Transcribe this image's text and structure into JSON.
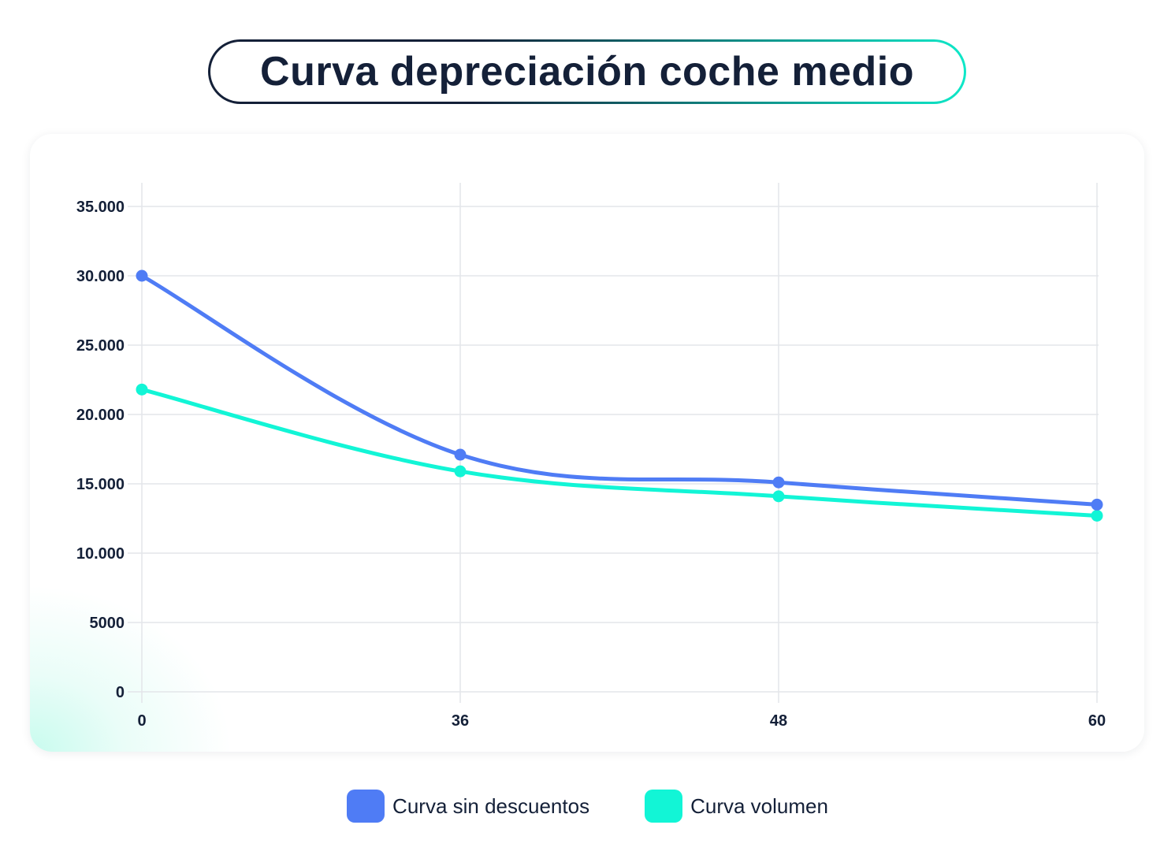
{
  "title": "Curva depreciación coche medio",
  "colors": {
    "series_1": "#4f7cf5",
    "series_2": "#12f5d6",
    "text": "#142038",
    "grid": "#e3e5ea"
  },
  "chart_data": {
    "type": "line",
    "x": [
      0,
      36,
      48,
      60
    ],
    "x_tick_labels": [
      "0",
      "36",
      "48",
      "60"
    ],
    "y_tick_labels": [
      "35.000",
      "30.000",
      "25.000",
      "20.000",
      "15.000",
      "10.000",
      "5000",
      "0"
    ],
    "y_ticks": [
      35000,
      30000,
      25000,
      20000,
      15000,
      10000,
      5000,
      0
    ],
    "ylim": [
      0,
      35000
    ],
    "grid": true,
    "legend_position": "bottom",
    "series": [
      {
        "name": "Curva sin descuentos",
        "color": "#4f7cf5",
        "values": [
          30000,
          17100,
          15100,
          13500
        ]
      },
      {
        "name": "Curva volumen",
        "color": "#12f5d6",
        "values": [
          21800,
          15900,
          14100,
          12700
        ]
      }
    ]
  },
  "legend": {
    "items": [
      {
        "label": "Curva sin descuentos",
        "color": "#4f7cf5"
      },
      {
        "label": "Curva volumen",
        "color": "#12f5d6"
      }
    ]
  }
}
